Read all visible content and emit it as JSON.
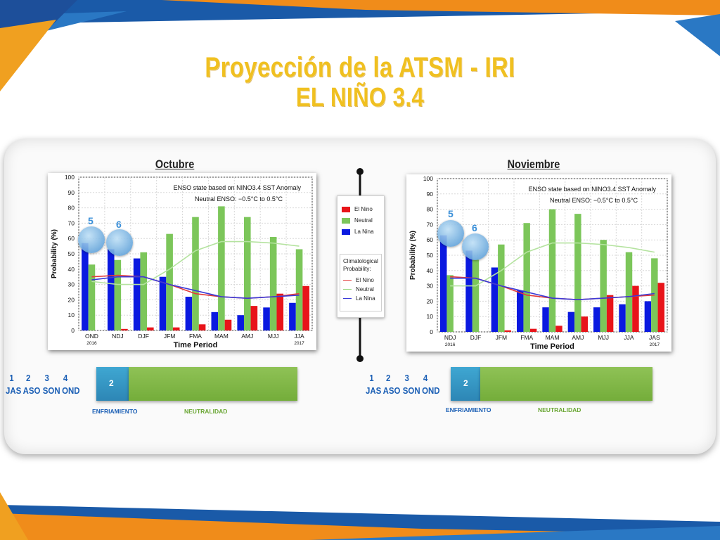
{
  "slide": {
    "title_line1": "Proyección de la ATSM - IRI",
    "title_line2": "EL NIÑO 3.4"
  },
  "panels": [
    {
      "month": "Octubre",
      "bubble_labels": [
        "5",
        "6"
      ],
      "seasons": [
        "1",
        "2",
        "3",
        "4"
      ],
      "season_names": [
        "JAS",
        "ASO",
        "SON",
        "OND"
      ],
      "teal_value": "2",
      "enfriamiento": "ENFRIAMIENTO",
      "neutralidad": "NEUTRALIDAD"
    },
    {
      "month": "Noviembre",
      "bubble_labels": [
        "5",
        "6"
      ],
      "seasons": [
        "1",
        "2",
        "3",
        "4"
      ],
      "season_names": [
        "JAS",
        "ASO",
        "SON",
        "OND"
      ],
      "teal_value": "2",
      "enfriamiento": "ENFRIAMIENTO",
      "neutralidad": "NEUTRALIDAD"
    }
  ],
  "legend": {
    "el_nino": "El Nino",
    "neutral": "Neutral",
    "la_nina": "La Nina",
    "clim_title_1": "Climatological",
    "clim_title_2": "Probability:",
    "clim_el_nino": "El Nino",
    "clim_neutral": "Neutral",
    "clim_la_nina": "La Nina"
  },
  "colors": {
    "el_nino": "#e8141a",
    "neutral": "#7cc65a",
    "la_nina": "#0a19e0",
    "clim_el_nino": "#e23a3a",
    "clim_neutral": "#b5e3a0",
    "clim_la_nina": "#3a3ad8",
    "title": "#f0c020"
  },
  "chart_data": [
    {
      "type": "bar",
      "title": "ENSO state based on NINO3.4 SST Anomaly",
      "subtitle": "Neutral ENSO: −0.5°C to 0.5°C",
      "xlabel": "Time Period",
      "ylabel": "Probability (%)",
      "ylim": [
        0,
        100
      ],
      "yticks": [
        0,
        10,
        20,
        30,
        40,
        50,
        60,
        70,
        80,
        90,
        100
      ],
      "categories": [
        "OND",
        "NDJ",
        "DJF",
        "JFM",
        "FMA",
        "MAM",
        "AMJ",
        "MJJ",
        "JJA"
      ],
      "year_start": "2016",
      "year_end": "2017",
      "grid": true,
      "series": [
        {
          "name": "La Nina",
          "values": [
            57,
            53,
            47,
            35,
            22,
            12,
            10,
            15,
            18
          ]
        },
        {
          "name": "Neutral",
          "values": [
            43,
            46,
            51,
            63,
            74,
            81,
            74,
            61,
            53
          ]
        },
        {
          "name": "El Nino",
          "values": [
            0,
            1,
            2,
            2,
            4,
            7,
            16,
            24,
            29
          ]
        }
      ],
      "climatology": [
        {
          "name": "El Nino",
          "values": [
            35,
            36,
            35,
            30,
            24,
            22,
            21,
            22,
            24
          ]
        },
        {
          "name": "Neutral",
          "values": [
            32,
            30,
            30,
            40,
            52,
            58,
            58,
            57,
            55
          ]
        },
        {
          "name": "La Nina",
          "values": [
            33,
            35,
            35,
            30,
            26,
            22,
            21,
            22,
            23
          ]
        }
      ]
    },
    {
      "type": "bar",
      "title": "ENSO state based on NINO3.4 SST Anomaly",
      "subtitle": "Neutral ENSO: −0.5°C to 0.5°C",
      "xlabel": "Time Period",
      "ylabel": "Probability (%)",
      "ylim": [
        0,
        100
      ],
      "yticks": [
        0,
        10,
        20,
        30,
        40,
        50,
        60,
        70,
        80,
        90,
        100
      ],
      "categories": [
        "NDJ",
        "DJF",
        "JFM",
        "FMA",
        "MAM",
        "AMJ",
        "MJJ",
        "JJA",
        "JAS"
      ],
      "year_start": "2016",
      "year_end": "2017",
      "grid": true,
      "series": [
        {
          "name": "La Nina",
          "values": [
            63,
            53,
            42,
            27,
            16,
            13,
            16,
            18,
            20
          ]
        },
        {
          "name": "Neutral",
          "values": [
            37,
            47,
            57,
            71,
            80,
            77,
            60,
            52,
            48
          ]
        },
        {
          "name": "El Nino",
          "values": [
            0,
            0,
            1,
            2,
            4,
            10,
            24,
            30,
            32
          ]
        }
      ],
      "climatology": [
        {
          "name": "El Nino",
          "values": [
            36,
            35,
            30,
            24,
            22,
            21,
            22,
            23,
            24
          ]
        },
        {
          "name": "Neutral",
          "values": [
            30,
            30,
            40,
            52,
            58,
            58,
            57,
            55,
            52
          ]
        },
        {
          "name": "La Nina",
          "values": [
            35,
            35,
            30,
            26,
            22,
            21,
            22,
            23,
            25
          ]
        }
      ]
    }
  ]
}
